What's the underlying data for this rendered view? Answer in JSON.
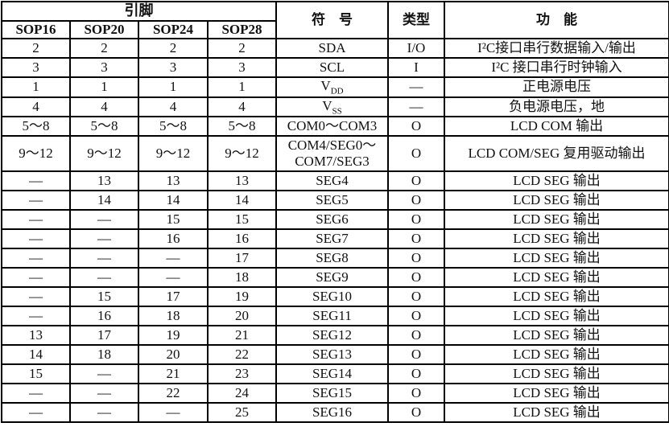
{
  "table": {
    "header": {
      "pin_group": "引脚",
      "packages": [
        "SOP16",
        "SOP20",
        "SOP24",
        "SOP28"
      ],
      "symbol": "符　号",
      "type": "类型",
      "function": "功　能"
    },
    "rows": [
      {
        "pins": [
          "2",
          "2",
          "2",
          "2"
        ],
        "symbol": "SDA",
        "type": "I/O",
        "function": "I²C接口串行数据输入/输出"
      },
      {
        "pins": [
          "3",
          "3",
          "3",
          "3"
        ],
        "symbol": "SCL",
        "type": "I",
        "function": "I²C 接口串行时钟输入"
      },
      {
        "pins": [
          "1",
          "1",
          "1",
          "1"
        ],
        "symbol": "V",
        "symbol_sub": "DD",
        "type": "—",
        "function": "正电源电压"
      },
      {
        "pins": [
          "4",
          "4",
          "4",
          "4"
        ],
        "symbol": "V",
        "symbol_sub": "SS",
        "type": "—",
        "function": "负电源电压，地"
      },
      {
        "pins": [
          "5～8",
          "5～8",
          "5～8",
          "5～8"
        ],
        "symbol": "COM0～COM3",
        "type": "O",
        "function": "LCD COM 输出"
      },
      {
        "pins": [
          "9～12",
          "9～12",
          "9～12",
          "9～12"
        ],
        "symbol": "COM4/SEG0～\nCOM7/SEG3",
        "type": "O",
        "function": "LCD COM/SEG 复用驱动输出",
        "tall": true
      },
      {
        "pins": [
          "—",
          "13",
          "13",
          "13"
        ],
        "symbol": "SEG4",
        "type": "O",
        "function": "LCD SEG 输出"
      },
      {
        "pins": [
          "—",
          "14",
          "14",
          "14"
        ],
        "symbol": "SEG5",
        "type": "O",
        "function": "LCD SEG 输出"
      },
      {
        "pins": [
          "—",
          "—",
          "15",
          "15"
        ],
        "symbol": "SEG6",
        "type": "O",
        "function": "LCD SEG 输出"
      },
      {
        "pins": [
          "—",
          "—",
          "16",
          "16"
        ],
        "symbol": "SEG7",
        "type": "O",
        "function": "LCD SEG 输出"
      },
      {
        "pins": [
          "—",
          "—",
          "—",
          "17"
        ],
        "symbol": "SEG8",
        "type": "O",
        "function": "LCD SEG 输出"
      },
      {
        "pins": [
          "—",
          "—",
          "—",
          "18"
        ],
        "symbol": "SEG9",
        "type": "O",
        "function": "LCD SEG 输出"
      },
      {
        "pins": [
          "—",
          "15",
          "17",
          "19"
        ],
        "symbol": "SEG10",
        "type": "O",
        "function": "LCD SEG 输出"
      },
      {
        "pins": [
          "—",
          "16",
          "18",
          "20"
        ],
        "symbol": "SEG11",
        "type": "O",
        "function": "LCD SEG 输出"
      },
      {
        "pins": [
          "13",
          "17",
          "19",
          "21"
        ],
        "symbol": "SEG12",
        "type": "O",
        "function": "LCD SEG 输出"
      },
      {
        "pins": [
          "14",
          "18",
          "20",
          "22"
        ],
        "symbol": "SEG13",
        "type": "O",
        "function": "LCD SEG 输出"
      },
      {
        "pins": [
          "15",
          "—",
          "21",
          "23"
        ],
        "symbol": "SEG14",
        "type": "O",
        "function": "LCD SEG 输出"
      },
      {
        "pins": [
          "—",
          "—",
          "22",
          "24"
        ],
        "symbol": "SEG15",
        "type": "O",
        "function": "LCD SEG 输出"
      },
      {
        "pins": [
          "—",
          "—",
          "—",
          "25"
        ],
        "symbol": "SEG16",
        "type": "O",
        "function": "LCD SEG 输出"
      }
    ]
  }
}
